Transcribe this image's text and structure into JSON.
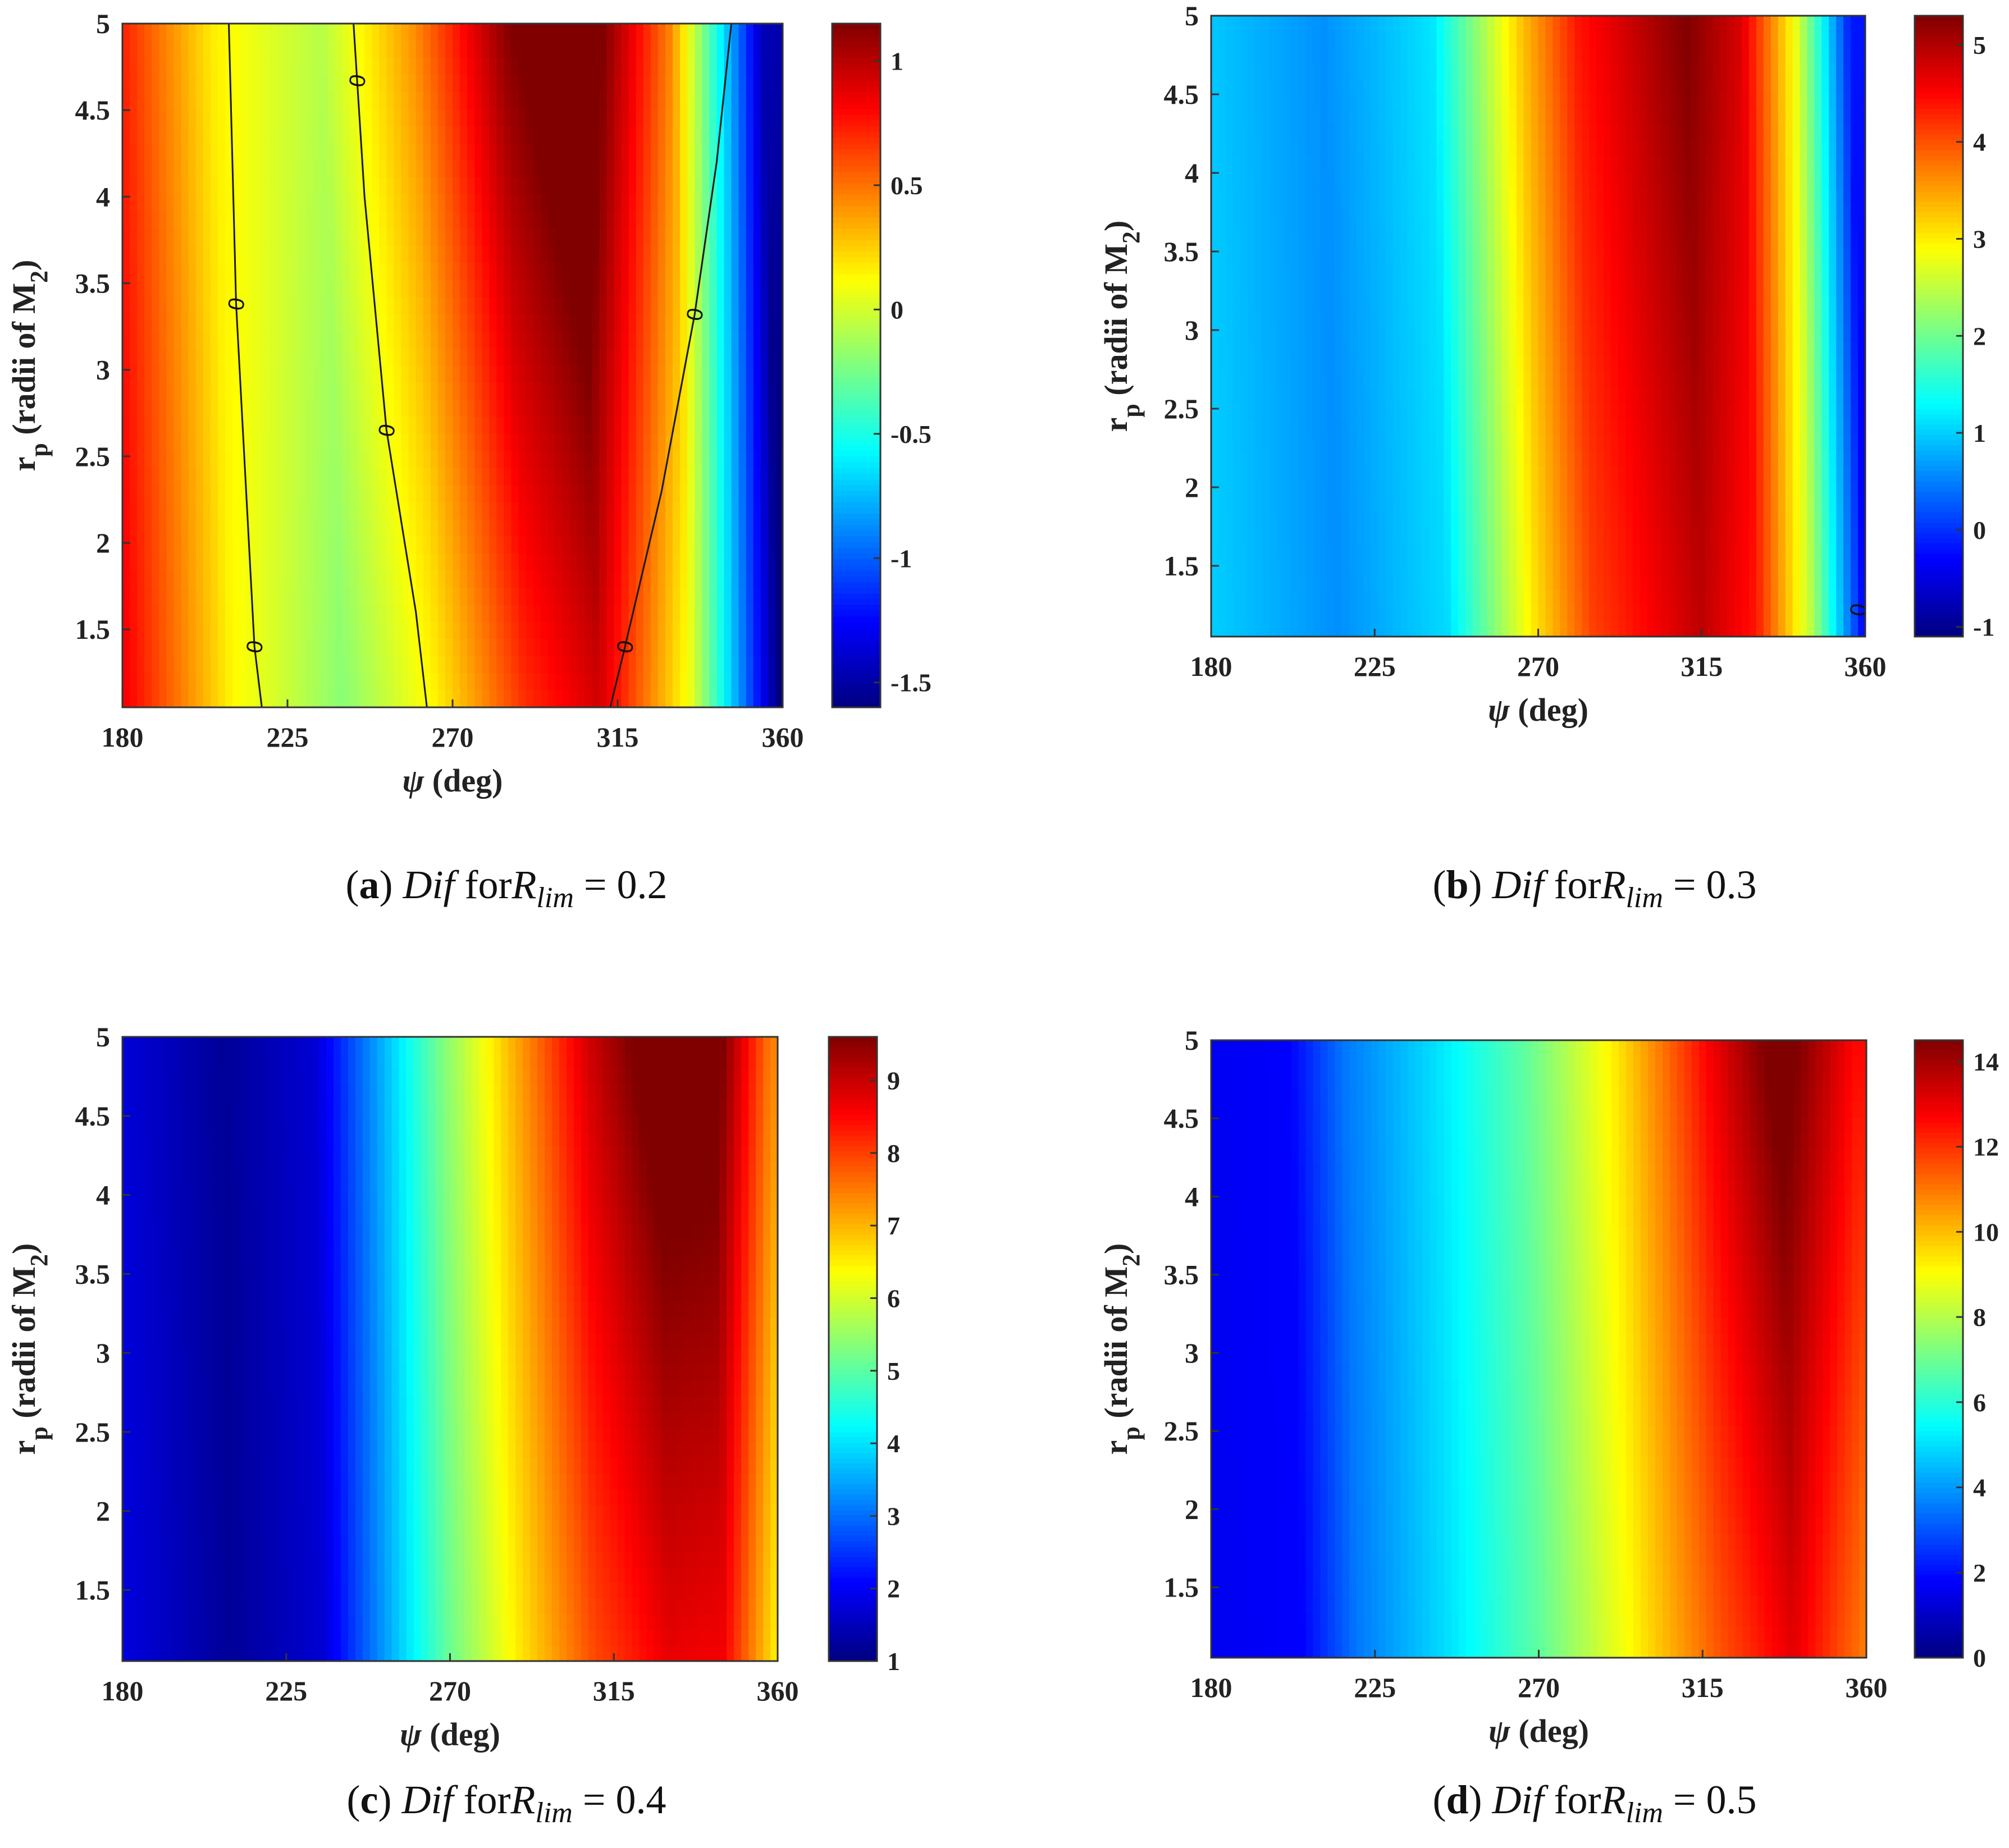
{
  "figure": {
    "panels_count": 4
  },
  "chart_data": [
    {
      "id": "a",
      "type": "heatmap",
      "caption": {
        "letter": "(a)",
        "text": "Dif  for",
        "var": "R",
        "sub": "lim",
        "eq": "= 0.2"
      },
      "xlabel": "ψ (deg)",
      "ylabel": "r_p (radii of M_2)",
      "xlim": [
        180,
        360
      ],
      "ylim": [
        1.05,
        5
      ],
      "xticks": [
        180,
        225,
        270,
        315,
        360
      ],
      "yticks": [
        1.5,
        2,
        2.5,
        3,
        3.5,
        4,
        4.5,
        5
      ],
      "colorbar": {
        "min": -1.6,
        "max": 1.15,
        "ticks": [
          -1.5,
          -1,
          -0.5,
          0,
          0.5,
          1
        ]
      },
      "colormap": "jet",
      "model": {
        "base": [
          [
            180,
            0.85
          ],
          [
            210,
            0.15
          ],
          [
            240,
            -0.15
          ],
          [
            265,
            0.25
          ],
          [
            290,
            0.85
          ],
          [
            310,
            1.1
          ],
          [
            335,
            0.2
          ],
          [
            360,
            -1.6
          ]
        ],
        "shift": 0.08,
        "center": 305,
        "width": 60,
        "cval": 0.12
      },
      "contours": [
        {
          "level": 0,
          "label": "0",
          "points": [
            [
              218,
              1.05
            ],
            [
              216,
              1.4
            ],
            [
              211,
              3.38
            ],
            [
              209,
              5.0
            ]
          ]
        },
        {
          "level": 0,
          "label": "0",
          "points": [
            [
              263,
              1.05
            ],
            [
              260,
              1.6
            ],
            [
              252,
              2.65
            ],
            [
              246,
              4.0
            ],
            [
              243,
              5.0
            ]
          ]
        },
        {
          "level": 0,
          "label": "0",
          "points": [
            [
              313,
              1.05
            ],
            [
              317,
              1.4
            ],
            [
              327,
              2.3
            ],
            [
              336,
              3.32
            ],
            [
              342,
              4.2
            ],
            [
              346,
              5.0
            ]
          ]
        }
      ],
      "contour_labels": [
        {
          "x": 216,
          "y": 1.4,
          "text": "0"
        },
        {
          "x": 211,
          "y": 3.38,
          "text": "0"
        },
        {
          "x": 244,
          "y": 4.67,
          "text": "0"
        },
        {
          "x": 252,
          "y": 2.65,
          "text": "0"
        },
        {
          "x": 317,
          "y": 1.4,
          "text": "0"
        },
        {
          "x": 336,
          "y": 3.32,
          "text": "0"
        }
      ]
    },
    {
      "id": "b",
      "type": "heatmap",
      "caption": {
        "letter": "(b)",
        "text": "Dif  for",
        "var": "R",
        "sub": "lim",
        "eq": "= 0.3"
      },
      "xlabel": "ψ (deg)",
      "ylabel": "r_p (radii of M_2)",
      "xlim": [
        180,
        360
      ],
      "ylim": [
        1.05,
        5
      ],
      "xticks": [
        180,
        225,
        270,
        315,
        360
      ],
      "yticks": [
        1.5,
        2,
        2.5,
        3,
        3.5,
        4,
        4.5,
        5
      ],
      "colorbar": {
        "min": -1.1,
        "max": 5.3,
        "ticks": [
          -1,
          0,
          1,
          2,
          3,
          4,
          5
        ]
      },
      "colormap": "jet",
      "model": {
        "base": [
          [
            180,
            1.0
          ],
          [
            215,
            0.6
          ],
          [
            245,
            1.1
          ],
          [
            270,
            3.2
          ],
          [
            285,
            4.2
          ],
          [
            315,
            5.05
          ],
          [
            330,
            4.5
          ],
          [
            345,
            2.6
          ],
          [
            360,
            -0.3
          ]
        ],
        "shift": 0.06,
        "center": 315,
        "width": 55,
        "cval": 0.1
      },
      "contours": [],
      "contour_labels": [
        {
          "x": 358,
          "y": 1.22,
          "text": "0"
        }
      ]
    },
    {
      "id": "c",
      "type": "heatmap",
      "caption": {
        "letter": "(c)",
        "text": "Dif   for",
        "var": "R",
        "sub": "lim",
        "eq": "= 0.4"
      },
      "xlabel": "ψ (deg)",
      "ylabel": "r_p (radii of M_2)",
      "xlim": [
        180,
        360
      ],
      "ylim": [
        1.05,
        5
      ],
      "xticks": [
        180,
        225,
        270,
        315,
        360
      ],
      "yticks": [
        1.5,
        2,
        2.5,
        3,
        3.5,
        4,
        4.5,
        5
      ],
      "colorbar": {
        "min": 1,
        "max": 9.6,
        "ticks": [
          1,
          2,
          3,
          4,
          5,
          6,
          7,
          8,
          9
        ]
      },
      "colormap": "jet",
      "model": {
        "base": [
          [
            180,
            1.8
          ],
          [
            210,
            1.2
          ],
          [
            235,
            1.7
          ],
          [
            250,
            3.2
          ],
          [
            270,
            5.2
          ],
          [
            290,
            6.8
          ],
          [
            310,
            8.3
          ],
          [
            330,
            9.2
          ],
          [
            345,
            9.1
          ],
          [
            360,
            6.8
          ]
        ],
        "shift": 0.03,
        "center": 335,
        "width": 45,
        "cval": 0.35
      },
      "contours": [],
      "contour_labels": []
    },
    {
      "id": "d",
      "type": "heatmap",
      "caption": {
        "letter": "(d)",
        "text": "Dif  for",
        "var": "R",
        "sub": "lim",
        "eq": "= 0.5"
      },
      "xlabel": "ψ (deg)",
      "ylabel": "r_p (radii of M_2)",
      "xlim": [
        180,
        360
      ],
      "ylim": [
        1.05,
        5
      ],
      "xticks": [
        180,
        225,
        270,
        315,
        360
      ],
      "yticks": [
        1.5,
        2,
        2.5,
        3,
        3.5,
        4,
        4.5,
        5
      ],
      "colorbar": {
        "min": 0,
        "max": 14.5,
        "ticks": [
          0,
          2,
          4,
          6,
          8,
          10,
          12,
          14
        ]
      },
      "colormap": "jet",
      "model": {
        "base": [
          [
            180,
            1.6
          ],
          [
            205,
            1.8
          ],
          [
            220,
            3.5
          ],
          [
            245,
            5.0
          ],
          [
            270,
            6.8
          ],
          [
            295,
            9.2
          ],
          [
            320,
            12.0
          ],
          [
            340,
            13.8
          ],
          [
            360,
            11.5
          ]
        ],
        "shift": 0.05,
        "center": 345,
        "width": 40,
        "cval": 0.5
      },
      "contours": [],
      "contour_labels": []
    }
  ]
}
